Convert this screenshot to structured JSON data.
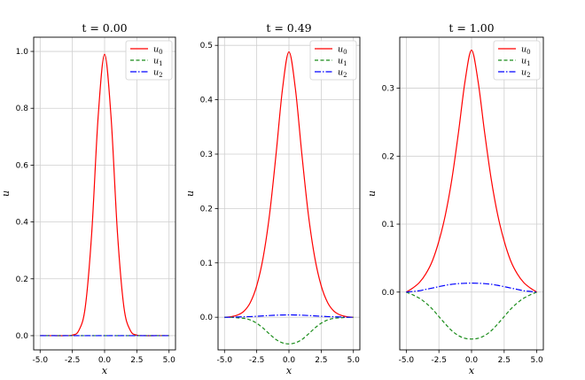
{
  "figure": {
    "colors": {
      "u0": "#ff0000",
      "u1": "#1a8c1a",
      "u2": "#0000ff"
    }
  },
  "chart_data": [
    {
      "type": "line",
      "title": "t = 0.00",
      "xlabel": "x",
      "ylabel": "u",
      "xlim": [
        -5.5,
        5.5
      ],
      "ylim": [
        -0.05,
        1.05
      ],
      "xticks": [
        "-5.0",
        "-2.5",
        "0.0",
        "2.5",
        "5.0"
      ],
      "yticks": [
        "0.0",
        "0.2",
        "0.4",
        "0.6",
        "0.8",
        "1.0"
      ],
      "grid": true,
      "legend": {
        "position": "top-right"
      },
      "x": [
        -5.0,
        -4.0,
        -3.0,
        -2.5,
        -2.0,
        -1.5,
        -1.0,
        -0.5,
        0.0,
        0.5,
        1.0,
        1.5,
        2.0,
        2.5,
        3.0,
        4.0,
        5.0
      ],
      "series": [
        {
          "name": "u0",
          "values": [
            0.0,
            0.0,
            0.0,
            0.002,
            0.018,
            0.1,
            0.36,
            0.77,
            0.99,
            0.77,
            0.36,
            0.1,
            0.018,
            0.002,
            0.0,
            0.0,
            0.0
          ]
        },
        {
          "name": "u1",
          "values": [
            0.0,
            0.0,
            0.0,
            0.0,
            0.0,
            0.0,
            0.0,
            0.0,
            0.0,
            0.0,
            0.0,
            0.0,
            0.0,
            0.0,
            0.0,
            0.0,
            0.0
          ]
        },
        {
          "name": "u2",
          "values": [
            0.0,
            0.0,
            0.0,
            0.0,
            0.0,
            0.0,
            0.0,
            0.0,
            0.0,
            0.0,
            0.0,
            0.0,
            0.0,
            0.0,
            0.0,
            0.0,
            0.0
          ]
        }
      ]
    },
    {
      "type": "line",
      "title": "t = 0.49",
      "xlabel": "x",
      "ylabel": "u",
      "xlim": [
        -5.5,
        5.5
      ],
      "ylim": [
        -0.06,
        0.515
      ],
      "xticks": [
        "-5.0",
        "-2.5",
        "0.0",
        "2.5",
        "5.0"
      ],
      "yticks": [
        "0.0",
        "0.1",
        "0.2",
        "0.3",
        "0.4",
        "0.5"
      ],
      "grid": true,
      "legend": {
        "position": "top-right"
      },
      "x": [
        -5.0,
        -4.5,
        -4.0,
        -3.5,
        -3.0,
        -2.5,
        -2.0,
        -1.5,
        -1.0,
        -0.5,
        0.0,
        0.5,
        1.0,
        1.5,
        2.0,
        2.5,
        3.0,
        3.5,
        4.0,
        4.5,
        5.0
      ],
      "series": [
        {
          "name": "u0",
          "values": [
            0.0,
            0.001,
            0.004,
            0.011,
            0.027,
            0.058,
            0.11,
            0.19,
            0.3,
            0.42,
            0.488,
            0.42,
            0.3,
            0.19,
            0.11,
            0.058,
            0.027,
            0.011,
            0.004,
            0.001,
            0.0
          ]
        },
        {
          "name": "u1",
          "values": [
            0.0,
            0.0,
            -0.001,
            -0.002,
            -0.005,
            -0.011,
            -0.02,
            -0.031,
            -0.041,
            -0.047,
            -0.049,
            -0.047,
            -0.041,
            -0.031,
            -0.02,
            -0.011,
            -0.005,
            -0.002,
            -0.001,
            0.0,
            0.0
          ]
        },
        {
          "name": "u2",
          "values": [
            0.0,
            0.0,
            0.0005,
            0.0008,
            0.0012,
            0.0018,
            0.0025,
            0.0032,
            0.0038,
            0.0042,
            0.0043,
            0.0042,
            0.0038,
            0.0032,
            0.0025,
            0.0018,
            0.0012,
            0.0008,
            0.0005,
            0.0,
            0.0
          ]
        }
      ]
    },
    {
      "type": "line",
      "title": "t = 1.00",
      "xlabel": "x",
      "ylabel": "u",
      "xlim": [
        -5.5,
        5.5
      ],
      "ylim": [
        -0.085,
        0.375
      ],
      "xticks": [
        "-5.0",
        "-2.5",
        "0.0",
        "2.5",
        "5.0"
      ],
      "yticks": [
        "0.0",
        "0.1",
        "0.2",
        "0.3"
      ],
      "grid": true,
      "legend": {
        "position": "top-right"
      },
      "x": [
        -5.0,
        -4.5,
        -4.0,
        -3.5,
        -3.0,
        -2.5,
        -2.0,
        -1.5,
        -1.0,
        -0.5,
        0.0,
        0.5,
        1.0,
        1.5,
        2.0,
        2.5,
        3.0,
        3.5,
        4.0,
        4.5,
        5.0
      ],
      "series": [
        {
          "name": "u0",
          "values": [
            0.0,
            0.006,
            0.014,
            0.027,
            0.046,
            0.075,
            0.114,
            0.167,
            0.235,
            0.31,
            0.356,
            0.31,
            0.235,
            0.167,
            0.114,
            0.075,
            0.046,
            0.027,
            0.014,
            0.006,
            0.0
          ]
        },
        {
          "name": "u1",
          "values": [
            0.0,
            -0.004,
            -0.009,
            -0.016,
            -0.025,
            -0.036,
            -0.047,
            -0.057,
            -0.064,
            -0.068,
            -0.069,
            -0.068,
            -0.064,
            -0.057,
            -0.047,
            -0.036,
            -0.025,
            -0.016,
            -0.009,
            -0.004,
            0.0
          ]
        },
        {
          "name": "u2",
          "values": [
            0.0,
            0.001,
            0.002,
            0.004,
            0.006,
            0.008,
            0.01,
            0.0115,
            0.0125,
            0.013,
            0.0132,
            0.013,
            0.0125,
            0.0115,
            0.01,
            0.008,
            0.006,
            0.004,
            0.002,
            0.001,
            0.0
          ]
        }
      ]
    }
  ]
}
